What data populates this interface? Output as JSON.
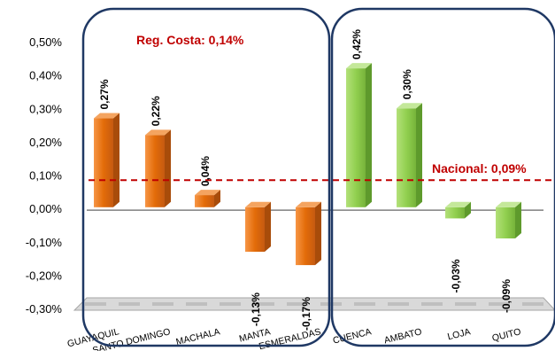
{
  "chart_data": {
    "type": "bar",
    "title": "",
    "xlabel": "",
    "ylabel": "",
    "ylim": [
      -0.3,
      0.5
    ],
    "yticks": [
      "0,50%",
      "0,40%",
      "0,30%",
      "0,20%",
      "0,10%",
      "0,00%",
      "-0,10%",
      "-0,20%",
      "-0,30%"
    ],
    "categories": [
      "GUAYAQUIL",
      "SANTO DOMINGO",
      "MACHALA",
      "MANTA",
      "ESMERALDAS",
      "CUENCA",
      "AMBATO",
      "LOJA",
      "QUITO"
    ],
    "values": [
      0.27,
      0.22,
      0.04,
      -0.13,
      -0.17,
      0.42,
      0.3,
      -0.03,
      -0.09
    ],
    "data_labels": [
      "0,27%",
      "0,22%",
      "0,04%",
      "-0,13%",
      "-0,17%",
      "0,42%",
      "0,30%",
      "-0,03%",
      "-0,09%"
    ],
    "groups": [
      {
        "categories": [
          "GUAYAQUIL",
          "SANTO DOMINGO",
          "MACHALA",
          "MANTA",
          "ESMERALDAS"
        ],
        "color": "#E36C09",
        "label": "Reg. Costa: 0,14%",
        "value": 0.14
      },
      {
        "categories": [
          "CUENCA",
          "AMBATO",
          "LOJA",
          "QUITO"
        ],
        "color": "#92D050"
      }
    ],
    "reference_line": {
      "label": "Nacional: 0,09%",
      "value": 0.09,
      "color": "#C00000",
      "style": "dashed"
    },
    "grid": false,
    "legend": "none"
  },
  "colors": {
    "costa": "#E36C09",
    "sierra": "#92D050",
    "frame": "#1F3864",
    "annotation": "#C00000"
  }
}
